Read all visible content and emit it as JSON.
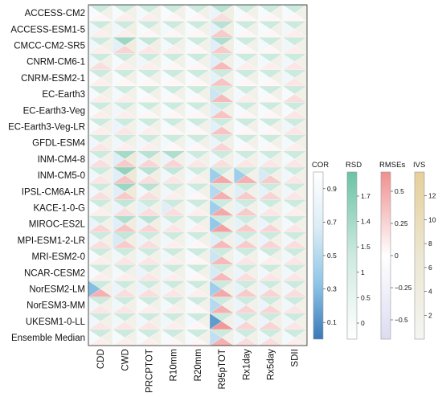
{
  "chart_data": {
    "type": "heatmap",
    "title": "",
    "xlabel": "",
    "ylabel": "",
    "models": [
      "ACCESS-CM2",
      "ACCESS-ESM1-5",
      "CMCC-CM2-SR5",
      "CNRM-CM6-1",
      "CNRM-ESM2-1",
      "EC-Earth3",
      "EC-Earth3-Veg",
      "EC-Earth3-Veg-LR",
      "GFDL-ESM4",
      "INM-CM4-8",
      "INM-CM5-0",
      "IPSL-CM6A-LR",
      "KACE-1-0-G",
      "MIROC-ES2L",
      "MPI-ESM1-2-LR",
      "MRI-ESM2-0",
      "NCAR-CESM2",
      "NorESM2-LM",
      "NorESM3-MM",
      "UKESM1-0-LL",
      "Ensemble Median"
    ],
    "indices": [
      "CDD",
      "CWD",
      "PRCPTOT",
      "R10mm",
      "R20mm",
      "R95pTOT",
      "Rx1day",
      "Rx5day",
      "SDII"
    ],
    "metrics": [
      {
        "name": "COR",
        "triangle": "left",
        "ticks": [
          "0.9",
          "0.7",
          "0.5",
          "0.3",
          "0.1"
        ],
        "tick_values": [
          0.9,
          0.7,
          0.5,
          0.3,
          0.1
        ],
        "range": [
          0,
          1
        ],
        "colors": [
          "#3a78b8",
          "#8ec6e8",
          "#dcedf6",
          "#ffffff"
        ]
      },
      {
        "name": "RSD",
        "triangle": "top",
        "ticks": [
          "1.7",
          "1.4",
          "1.5",
          "1",
          "0.5",
          "0"
        ],
        "range": [
          0,
          2
        ],
        "colors": [
          "#ffffff",
          "#cdeadf",
          "#6cc3a6"
        ]
      },
      {
        "name": "RMSEs",
        "triangle": "bottom",
        "ticks": [
          "0.5",
          "0.25",
          "0",
          "−0.25",
          "−0.5"
        ],
        "tick_values": [
          0.5,
          0.25,
          0,
          -0.25,
          -0.5
        ],
        "range": [
          -0.65,
          0.65
        ],
        "colors": [
          "#dcdcf2",
          "#ffffff",
          "#f08f8f"
        ]
      },
      {
        "name": "IVS",
        "triangle": "right",
        "ticks": [
          "12",
          "10",
          "8",
          "6",
          "4",
          "2"
        ],
        "tick_values": [
          12,
          10,
          8,
          6,
          4,
          2
        ],
        "range": [
          0,
          14
        ],
        "colors": [
          "#f5f5f2",
          "#ece7d2",
          "#e6cf9a"
        ]
      }
    ],
    "values": {
      "COR": [
        [
          0.92,
          0.9,
          0.88,
          0.92,
          0.93,
          0.8,
          0.9,
          0.9,
          0.9
        ],
        [
          0.85,
          0.85,
          0.9,
          0.88,
          0.9,
          0.75,
          0.9,
          0.9,
          0.85
        ],
        [
          0.85,
          0.72,
          0.85,
          0.88,
          0.9,
          0.7,
          0.9,
          0.88,
          0.85
        ],
        [
          0.85,
          0.9,
          0.85,
          0.9,
          0.9,
          0.7,
          0.88,
          0.88,
          0.85
        ],
        [
          0.92,
          0.92,
          0.92,
          0.92,
          0.92,
          0.75,
          0.9,
          0.9,
          0.85
        ],
        [
          0.9,
          0.88,
          0.92,
          0.9,
          0.9,
          0.6,
          0.88,
          0.9,
          0.9
        ],
        [
          0.9,
          0.85,
          0.9,
          0.9,
          0.9,
          0.7,
          0.9,
          0.9,
          0.9
        ],
        [
          0.9,
          0.8,
          0.88,
          0.9,
          0.9,
          0.72,
          0.9,
          0.9,
          0.85
        ],
        [
          0.85,
          0.85,
          0.85,
          0.88,
          0.88,
          0.8,
          0.9,
          0.9,
          0.88
        ],
        [
          0.85,
          0.7,
          0.8,
          0.8,
          0.85,
          0.85,
          0.85,
          0.85,
          0.88
        ],
        [
          0.85,
          0.7,
          0.85,
          0.85,
          0.88,
          0.4,
          0.4,
          0.65,
          0.85
        ],
        [
          0.85,
          0.7,
          0.85,
          0.85,
          0.88,
          0.5,
          0.7,
          0.75,
          0.85
        ],
        [
          0.9,
          0.8,
          0.75,
          0.7,
          0.88,
          0.4,
          0.75,
          0.85,
          0.88
        ],
        [
          0.8,
          0.7,
          0.8,
          0.85,
          0.88,
          0.35,
          0.75,
          0.8,
          0.88
        ],
        [
          0.85,
          0.65,
          0.8,
          0.85,
          0.88,
          0.7,
          0.75,
          0.8,
          0.85
        ],
        [
          0.9,
          0.85,
          0.85,
          0.85,
          0.9,
          0.6,
          0.85,
          0.9,
          0.85
        ],
        [
          0.9,
          0.88,
          0.8,
          0.85,
          0.9,
          0.65,
          0.8,
          0.85,
          0.85
        ],
        [
          0.3,
          0.8,
          0.8,
          0.85,
          0.88,
          0.4,
          0.75,
          0.8,
          0.85
        ],
        [
          0.85,
          0.85,
          0.9,
          0.88,
          0.9,
          0.5,
          0.8,
          0.8,
          0.85
        ],
        [
          0.85,
          0.85,
          0.85,
          0.85,
          0.88,
          0.15,
          0.8,
          0.8,
          0.85
        ],
        [
          0.9,
          0.9,
          0.9,
          0.9,
          0.9,
          0.55,
          0.85,
          0.85,
          0.88
        ]
      ],
      "RSD": [
        [
          1.0,
          1.0,
          1.0,
          1.0,
          1.0,
          1.2,
          1.0,
          1.0,
          1.0
        ],
        [
          1.0,
          1.0,
          1.0,
          1.0,
          1.0,
          1.2,
          1.0,
          1.0,
          1.0
        ],
        [
          1.0,
          1.5,
          1.1,
          1.0,
          1.0,
          1.3,
          1.0,
          1.0,
          1.0
        ],
        [
          1.0,
          1.0,
          1.0,
          1.0,
          1.0,
          1.0,
          1.0,
          1.0,
          1.0
        ],
        [
          1.0,
          1.0,
          1.0,
          1.0,
          1.0,
          1.0,
          1.0,
          1.0,
          1.0
        ],
        [
          1.0,
          1.0,
          1.0,
          1.0,
          1.0,
          1.0,
          1.0,
          1.0,
          1.0
        ],
        [
          1.0,
          1.0,
          1.0,
          1.0,
          1.0,
          1.0,
          1.0,
          1.0,
          1.0
        ],
        [
          1.0,
          1.0,
          1.0,
          1.0,
          1.0,
          1.0,
          1.0,
          1.0,
          1.0
        ],
        [
          1.0,
          1.0,
          1.0,
          1.0,
          1.0,
          1.0,
          1.0,
          1.0,
          1.0
        ],
        [
          1.0,
          1.4,
          1.2,
          1.3,
          1.0,
          1.0,
          1.0,
          1.0,
          1.0
        ],
        [
          1.0,
          1.6,
          1.2,
          1.1,
          1.0,
          1.0,
          1.0,
          1.0,
          1.0
        ],
        [
          1.0,
          1.5,
          1.2,
          1.0,
          1.0,
          1.0,
          1.0,
          1.0,
          1.0
        ],
        [
          1.0,
          1.1,
          1.0,
          1.0,
          1.0,
          1.0,
          1.0,
          1.0,
          1.0
        ],
        [
          1.0,
          1.3,
          1.2,
          1.0,
          1.0,
          1.0,
          1.0,
          1.0,
          1.0
        ],
        [
          1.0,
          1.1,
          1.0,
          1.0,
          1.0,
          1.0,
          1.0,
          1.0,
          1.0
        ],
        [
          1.0,
          1.0,
          1.0,
          1.0,
          1.0,
          1.0,
          1.0,
          1.0,
          1.0
        ],
        [
          1.0,
          1.0,
          1.0,
          1.0,
          1.0,
          1.0,
          1.0,
          1.0,
          1.0
        ],
        [
          1.0,
          1.0,
          1.0,
          1.0,
          1.0,
          1.0,
          1.0,
          1.0,
          1.0
        ],
        [
          1.0,
          1.0,
          1.0,
          1.0,
          1.0,
          1.0,
          1.0,
          1.0,
          1.0
        ],
        [
          1.0,
          1.0,
          1.0,
          1.0,
          1.0,
          1.0,
          1.0,
          1.0,
          1.0
        ],
        [
          1.0,
          1.0,
          1.0,
          1.0,
          1.0,
          1.0,
          1.0,
          1.0,
          1.0
        ]
      ],
      "RMSEs": [
        [
          0.05,
          0.1,
          0.1,
          0.05,
          0.05,
          0.2,
          0.05,
          0.05,
          0.05
        ],
        [
          0.1,
          0.1,
          0.05,
          0.05,
          0.05,
          0.3,
          0.05,
          0.05,
          0.1
        ],
        [
          0.1,
          0.25,
          0.15,
          0.1,
          0.05,
          0.3,
          0.05,
          0.05,
          0.1
        ],
        [
          0.2,
          0.1,
          0.1,
          0.05,
          0.05,
          0.4,
          0.1,
          0.1,
          0.15
        ],
        [
          0.1,
          0.05,
          0.05,
          0.05,
          0.05,
          0.35,
          0.05,
          0.05,
          0.15
        ],
        [
          0.1,
          0.1,
          0.05,
          0.05,
          0.05,
          0.4,
          0.1,
          0.05,
          0.2
        ],
        [
          0.1,
          0.1,
          0.05,
          0.05,
          0.05,
          0.35,
          0.05,
          0.05,
          0.15
        ],
        [
          0.1,
          0.15,
          0.1,
          0.05,
          0.05,
          0.35,
          0.05,
          0.05,
          0.15
        ],
        [
          0.15,
          0.1,
          0.1,
          0.05,
          0.05,
          0.25,
          0.05,
          0.05,
          0.1
        ],
        [
          0.2,
          0.3,
          0.25,
          0.25,
          0.15,
          0.2,
          0.15,
          0.15,
          0.15
        ],
        [
          0.15,
          0.35,
          0.2,
          0.15,
          0.1,
          0.5,
          0.45,
          0.3,
          0.15
        ],
        [
          0.2,
          0.3,
          0.2,
          0.1,
          0.05,
          0.45,
          0.3,
          0.25,
          0.15
        ],
        [
          0.1,
          0.2,
          0.2,
          0.2,
          0.1,
          0.5,
          0.3,
          0.15,
          0.1
        ],
        [
          0.25,
          0.35,
          0.25,
          0.15,
          0.1,
          0.55,
          0.3,
          0.25,
          0.15
        ],
        [
          0.2,
          0.3,
          0.2,
          0.1,
          0.05,
          0.4,
          0.3,
          0.25,
          0.2
        ],
        [
          0.1,
          0.15,
          0.15,
          0.1,
          0.05,
          0.4,
          0.15,
          0.1,
          0.15
        ],
        [
          0.1,
          0.1,
          0.15,
          0.1,
          0.05,
          0.4,
          0.2,
          0.15,
          0.15
        ],
        [
          0.45,
          0.2,
          0.2,
          0.15,
          0.1,
          0.5,
          0.3,
          0.25,
          0.2
        ],
        [
          0.15,
          0.15,
          0.1,
          0.1,
          0.05,
          0.45,
          0.25,
          0.25,
          0.15
        ],
        [
          0.15,
          0.15,
          0.15,
          0.1,
          0.05,
          0.6,
          0.25,
          0.25,
          0.15
        ],
        [
          0.1,
          0.1,
          0.1,
          0.05,
          0.05,
          0.45,
          0.2,
          0.2,
          0.1
        ]
      ],
      "IVS": [
        [
          2,
          2,
          2,
          2,
          2,
          3,
          2,
          2,
          2
        ],
        [
          2,
          3,
          2,
          2,
          2,
          3,
          2,
          2,
          2
        ],
        [
          2,
          4,
          3,
          2,
          2,
          3,
          2,
          2,
          2
        ],
        [
          2,
          2,
          2,
          2,
          2,
          2,
          2,
          2,
          2
        ],
        [
          2,
          2,
          2,
          2,
          2,
          2,
          2,
          2,
          2
        ],
        [
          2,
          2,
          2,
          2,
          2,
          2,
          2,
          2,
          2
        ],
        [
          2,
          2,
          2,
          2,
          2,
          2,
          2,
          2,
          2
        ],
        [
          2,
          2,
          2,
          2,
          2,
          2,
          2,
          2,
          2
        ],
        [
          2,
          2,
          2,
          2,
          2,
          2,
          2,
          2,
          2
        ],
        [
          2,
          5,
          3,
          2,
          2,
          2,
          2,
          2,
          2
        ],
        [
          2,
          6,
          3,
          2,
          2,
          2,
          2,
          2,
          2
        ],
        [
          2,
          5,
          3,
          2,
          2,
          2,
          2,
          2,
          2
        ],
        [
          2,
          2,
          2,
          2,
          2,
          2,
          2,
          2,
          2
        ],
        [
          2,
          4,
          3,
          2,
          2,
          2,
          2,
          2,
          2
        ],
        [
          2,
          3,
          2,
          2,
          2,
          2,
          2,
          2,
          2
        ],
        [
          2,
          2,
          2,
          2,
          2,
          2,
          2,
          2,
          2
        ],
        [
          2,
          2,
          2,
          2,
          2,
          2,
          2,
          2,
          2
        ],
        [
          2,
          2,
          2,
          2,
          2,
          2,
          2,
          2,
          2
        ],
        [
          2,
          2,
          2,
          2,
          2,
          2,
          2,
          2,
          2
        ],
        [
          2,
          2,
          2,
          2,
          2,
          2,
          2,
          2,
          2
        ],
        [
          2,
          2,
          2,
          2,
          2,
          2,
          2,
          2,
          2
        ]
      ]
    }
  }
}
